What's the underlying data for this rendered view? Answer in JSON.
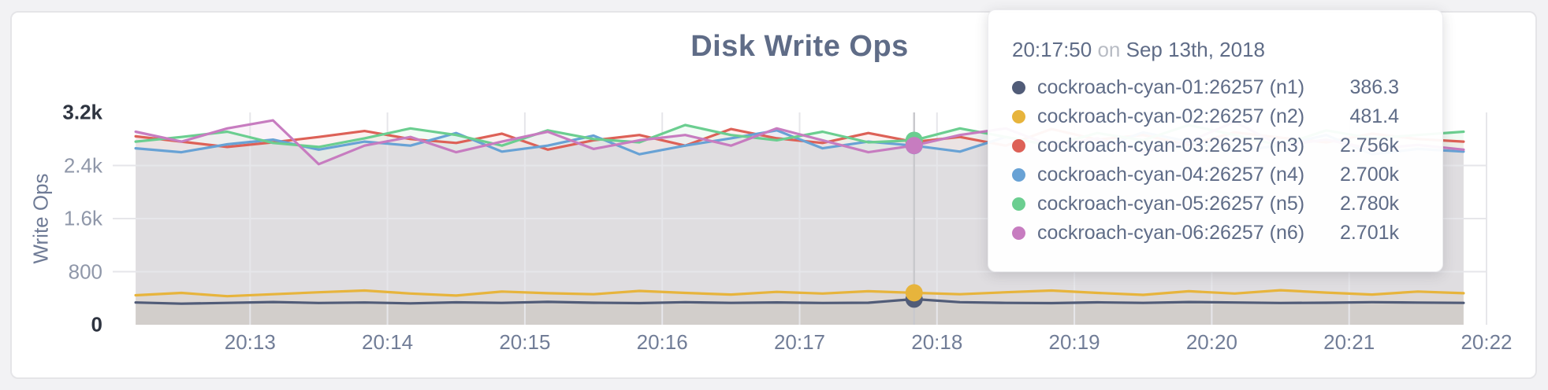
{
  "page": {
    "background": "#f2f2f4"
  },
  "panel": {
    "background": "#ffffff",
    "border": "#e5e5e8"
  },
  "chart_data": {
    "type": "line",
    "title": "Disk Write Ops",
    "xlabel": "",
    "ylabel": "Write Ops",
    "ylim": [
      0,
      3200
    ],
    "grid": true,
    "time_origin": "20:12:00",
    "x_domain_seconds": [
      0,
      600
    ],
    "y_ticks": [
      {
        "label": "3.2k",
        "value": 3200,
        "emphasis": true
      },
      {
        "label": "2.4k",
        "value": 2400,
        "emphasis": false
      },
      {
        "label": "1.6k",
        "value": 1600,
        "emphasis": false
      },
      {
        "label": "800",
        "value": 800,
        "emphasis": false
      },
      {
        "label": "0",
        "value": 0,
        "emphasis": true
      }
    ],
    "x_ticks": [
      {
        "label": "20:13",
        "seconds": 60
      },
      {
        "label": "20:14",
        "seconds": 120
      },
      {
        "label": "20:15",
        "seconds": 180
      },
      {
        "label": "20:16",
        "seconds": 240
      },
      {
        "label": "20:17",
        "seconds": 300
      },
      {
        "label": "20:18",
        "seconds": 360
      },
      {
        "label": "20:19",
        "seconds": 420
      },
      {
        "label": "20:20",
        "seconds": 480
      },
      {
        "label": "20:21",
        "seconds": 540
      },
      {
        "label": "20:22",
        "seconds": 600
      }
    ],
    "x_seconds": [
      10,
      30,
      50,
      70,
      90,
      110,
      130,
      150,
      170,
      190,
      210,
      230,
      250,
      270,
      290,
      310,
      330,
      350,
      370,
      390,
      410,
      430,
      450,
      470,
      490,
      510,
      530,
      550,
      570,
      590
    ],
    "hover_index": 17,
    "area_fill_opacity": 0.09,
    "gridline_color": "#e6e6ea",
    "guideline_color": "#c9c9cd",
    "series": [
      {
        "name": "cockroach-cyan-01:26257 (n1)",
        "color": "#515c78",
        "hover_value": "386.3",
        "values": [
          335,
          318,
          330,
          342,
          328,
          335,
          322,
          338,
          330,
          345,
          332,
          326,
          340,
          330,
          336,
          328,
          332,
          386.3,
          340,
          330,
          326,
          338,
          330,
          342,
          335,
          328,
          332,
          340,
          334,
          330
        ]
      },
      {
        "name": "cockroach-cyan-02:26257 (n2)",
        "color": "#e7b43c",
        "hover_value": "481.4",
        "values": [
          445,
          480,
          430,
          460,
          490,
          515,
          470,
          440,
          500,
          475,
          460,
          510,
          480,
          455,
          495,
          470,
          505,
          481.4,
          460,
          490,
          515,
          480,
          450,
          505,
          470,
          520,
          485,
          455,
          500,
          475
        ]
      },
      {
        "name": "cockroach-cyan-03:26257 (n3)",
        "color": "#dd6157",
        "hover_value": "2.756k",
        "values": [
          2840,
          2760,
          2680,
          2750,
          2830,
          2920,
          2800,
          2740,
          2880,
          2640,
          2780,
          2860,
          2700,
          2950,
          2810,
          2740,
          2890,
          2756,
          2830,
          2700,
          2950,
          2790,
          2860,
          2710,
          2900,
          2820,
          2750,
          2880,
          2800,
          2760
        ]
      },
      {
        "name": "cockroach-cyan-04:26257 (n4)",
        "color": "#68a2d5",
        "hover_value": "2.700k",
        "values": [
          2660,
          2600,
          2720,
          2790,
          2640,
          2760,
          2700,
          2890,
          2610,
          2700,
          2850,
          2570,
          2700,
          2810,
          2930,
          2660,
          2760,
          2700,
          2610,
          2830,
          2700,
          2650,
          2900,
          2760,
          2620,
          2700,
          2860,
          2570,
          2650,
          2610
        ]
      },
      {
        "name": "cockroach-cyan-05:26257 (n5)",
        "color": "#6bce90",
        "hover_value": "2.780k",
        "values": [
          2760,
          2830,
          2910,
          2740,
          2680,
          2810,
          2960,
          2860,
          2700,
          2930,
          2800,
          2750,
          3010,
          2860,
          2780,
          2910,
          2750,
          2780,
          2960,
          2830,
          2700,
          2890,
          2780,
          3010,
          2860,
          2700,
          2930,
          2810,
          2860,
          2910
        ]
      },
      {
        "name": "cockroach-cyan-06:26257 (n6)",
        "color": "#c77cc0",
        "hover_value": "2.701k",
        "values": [
          2910,
          2760,
          2960,
          3080,
          2420,
          2700,
          2830,
          2600,
          2760,
          2910,
          2650,
          2780,
          2860,
          2700,
          2960,
          2780,
          2600,
          2701,
          2860,
          2960,
          2700,
          2810,
          2600,
          2760,
          3060,
          2700,
          2790,
          2650,
          2710,
          2640
        ]
      }
    ]
  },
  "tooltip": {
    "time": "20:17:50",
    "separator": "on",
    "date": "Sep 13th, 2018"
  }
}
